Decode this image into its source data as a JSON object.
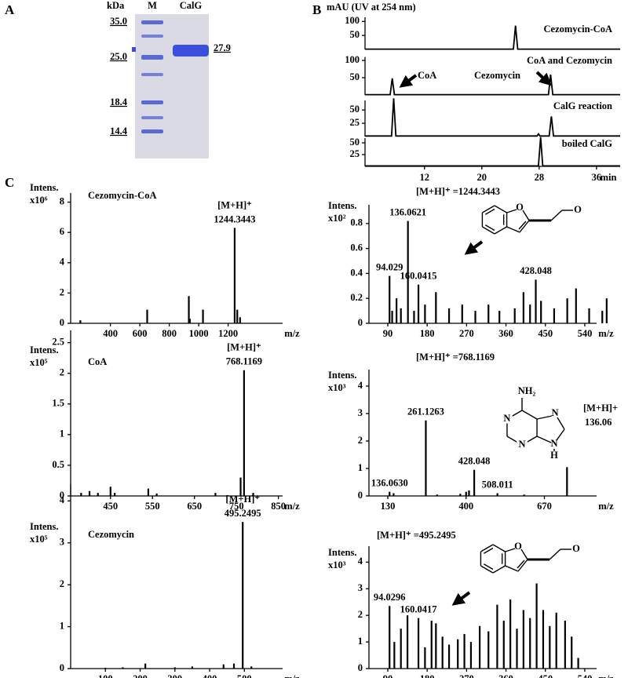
{
  "panel_labels": [
    "A",
    "B",
    "C"
  ],
  "gel": {
    "unit": "kDa",
    "lanes": [
      "M",
      "CalG"
    ],
    "marker_sizes": [
      "35.0",
      "25.0",
      "18.4",
      "14.4"
    ],
    "band_size": "27.9"
  },
  "chart_data": [
    {
      "type": "line",
      "title": "mAU (UV at 254 nm)",
      "x_label": "min",
      "xlim": [
        3.7,
        39.3
      ],
      "xticks": [
        12,
        20,
        28,
        36
      ],
      "series": [
        {
          "name": "Cezomycin-CoA",
          "color": "#000000",
          "ylim": [
            0,
            115
          ],
          "yticks": [
            50,
            100
          ],
          "annotations": [],
          "x": [
            3.7,
            24.4,
            24.7,
            25.0,
            39.3
          ],
          "values": [
            1,
            1,
            85,
            1,
            1
          ]
        },
        {
          "name": "CoA and Cezomycin",
          "color": "#000000",
          "ylim": [
            0,
            110
          ],
          "yticks": [
            50,
            100
          ],
          "annotations": [
            "CoA",
            "Cezomycin"
          ],
          "x": [
            3.7,
            7.2,
            7.5,
            7.8,
            29.3,
            29.6,
            29.9,
            39.3
          ],
          "values": [
            1,
            1,
            48,
            1,
            1,
            59,
            1,
            1
          ]
        },
        {
          "name": "CalG reaction",
          "color": "#000000",
          "ylim": [
            0,
            68
          ],
          "yticks": [
            25,
            50
          ],
          "annotations": [],
          "x": [
            3.7,
            7.4,
            7.7,
            8.0,
            27.7,
            27.9,
            28.1,
            29.4,
            29.7,
            30.0,
            39.3
          ],
          "values": [
            1,
            1,
            72,
            1,
            1,
            5,
            1,
            1,
            38,
            1,
            1
          ]
        },
        {
          "name": "boiled CalG",
          "color": "#000000",
          "ylim": [
            0,
            60
          ],
          "yticks": [
            25,
            50
          ],
          "annotations": [],
          "x": [
            3.7,
            27.9,
            28.2,
            28.5,
            39.3
          ],
          "values": [
            1,
            1,
            62,
            1,
            1
          ]
        }
      ]
    },
    {
      "type": "stem",
      "title": "Cezomycin-CoA",
      "y_label": "Intens.",
      "y_scale": "x10⁶",
      "x_label": "m/z",
      "annotation": "[M+H]⁺",
      "xlim": [
        130,
        1570
      ],
      "xticks": [
        400,
        600,
        800,
        1000,
        1200
      ],
      "ylim": [
        0,
        8.6
      ],
      "yticks": [
        0,
        2,
        4,
        6,
        8
      ],
      "x": [
        196,
        650,
        933,
        940,
        1029,
        1244.3443,
        1262,
        1281
      ],
      "values": [
        0.2,
        0.9,
        1.8,
        0.3,
        0.9,
        6.3,
        0.9,
        0.4
      ],
      "peak_labels": [
        null,
        null,
        null,
        null,
        null,
        "1244.3443",
        null,
        null
      ]
    },
    {
      "type": "stem",
      "title": "CoA",
      "y_label": "Intens.",
      "y_scale": "x10⁵",
      "x_label": "m/z",
      "annotation": "[M+H]⁺",
      "xlim": [
        355,
        860
      ],
      "xticks": [
        450,
        550,
        650,
        750,
        850
      ],
      "ylim": [
        0,
        2.7
      ],
      "yticks": [
        0,
        0.5,
        1,
        1.5,
        2,
        2.5
      ],
      "x": [
        380,
        400,
        420,
        450,
        460,
        540,
        560,
        700,
        760,
        768.1169,
        790
      ],
      "values": [
        0.05,
        0.08,
        0.05,
        0.15,
        0.05,
        0.12,
        0.04,
        0.05,
        0.3,
        2.05,
        0.05
      ],
      "peak_labels": [
        null,
        null,
        null,
        null,
        null,
        null,
        null,
        null,
        null,
        "768.1169",
        null
      ]
    },
    {
      "type": "stem",
      "title": "Cezomycin",
      "y_label": "Intens.",
      "y_scale": "x10⁵",
      "x_label": "m/z",
      "annotation": "[M+H]⁺",
      "xlim": [
        0,
        610
      ],
      "xticks": [
        100,
        200,
        300,
        400,
        500
      ],
      "ylim": [
        0,
        4.4
      ],
      "yticks": [
        0,
        1,
        2,
        3,
        4
      ],
      "x": [
        100,
        150,
        215,
        300,
        350,
        440,
        470,
        495.2495,
        520
      ],
      "values": [
        0.02,
        0.03,
        0.12,
        0.03,
        0.05,
        0.1,
        0.12,
        3.5,
        0.05
      ],
      "peak_labels": [
        null,
        null,
        null,
        null,
        null,
        null,
        null,
        "495.2495",
        null
      ]
    },
    {
      "type": "stem",
      "title": "[M+H]⁺ =1244.3443",
      "y_label": "Intens.",
      "y_scale": "x10²",
      "x_label": "m/z",
      "structure_labels": [
        "O",
        "O"
      ],
      "xlim": [
        47,
        567
      ],
      "xticks": [
        90,
        180,
        270,
        360,
        450,
        540
      ],
      "ylim": [
        0,
        0.95
      ],
      "yticks": [
        0,
        0.2,
        0.4,
        0.6,
        0.8
      ],
      "x": [
        94.029,
        100,
        110,
        120,
        136.0621,
        150,
        160.0415,
        175,
        200,
        230,
        260,
        290,
        320,
        345,
        380,
        400,
        415,
        428.048,
        440,
        470,
        500,
        520,
        550,
        580,
        590
      ],
      "values": [
        0.38,
        0.1,
        0.2,
        0.12,
        0.82,
        0.1,
        0.31,
        0.15,
        0.25,
        0.12,
        0.15,
        0.1,
        0.15,
        0.1,
        0.12,
        0.25,
        0.15,
        0.35,
        0.18,
        0.12,
        0.2,
        0.28,
        0.12,
        0.1,
        0.2
      ],
      "peak_labels": [
        "94.029",
        null,
        null,
        null,
        "136.0621",
        null,
        "160.0415",
        null,
        null,
        null,
        null,
        null,
        null,
        null,
        null,
        null,
        null,
        "428.048",
        null,
        null,
        null,
        null,
        null,
        null,
        null
      ]
    },
    {
      "type": "stem",
      "title": "[M+H]⁺ =768.1169",
      "y_label": "Intens.",
      "y_scale": "x10³",
      "x_label": "m/z",
      "structure_labels": [
        "NH₂",
        "N",
        "N",
        "N",
        "N",
        "H"
      ],
      "structure_note": [
        "[M+H]+",
        "136.06"
      ],
      "xlim": [
        65,
        850
      ],
      "xticks": [
        130,
        400,
        670
      ],
      "ylim": [
        0,
        4.6
      ],
      "yticks": [
        0,
        1,
        2,
        3,
        4
      ],
      "x": [
        136.063,
        150,
        261.1263,
        300,
        380,
        400,
        410,
        428.048,
        508.011,
        600,
        748
      ],
      "values": [
        0.15,
        0.1,
        2.75,
        0.05,
        0.08,
        0.15,
        0.2,
        0.95,
        0.1,
        0.05,
        1.05
      ],
      "peak_labels": [
        "136.0630",
        null,
        "261.1263",
        null,
        null,
        null,
        null,
        "428.048",
        "508.011",
        null,
        null
      ]
    },
    {
      "type": "stem",
      "title": "[M+H]⁺ =495.2495",
      "y_label": "Intens.",
      "y_scale": "x10³",
      "x_label": "m/z",
      "structure_labels": [
        "O",
        "O"
      ],
      "xlim": [
        47,
        567
      ],
      "xticks": [
        90,
        180,
        270,
        360,
        450,
        540
      ],
      "ylim": [
        0,
        4.6
      ],
      "yticks": [
        0,
        1,
        2,
        3,
        4
      ],
      "x": [
        94.0296,
        105,
        120,
        135,
        160.0417,
        175,
        190,
        200,
        215,
        230,
        250,
        265,
        280,
        300,
        320,
        340,
        355,
        370,
        385,
        400,
        415,
        430,
        445,
        460,
        475,
        495,
        510,
        525
      ],
      "values": [
        2.35,
        1.0,
        1.5,
        2.0,
        1.9,
        0.8,
        1.8,
        1.7,
        1.2,
        0.9,
        1.1,
        1.3,
        1.0,
        1.6,
        1.4,
        2.4,
        1.8,
        2.6,
        1.5,
        2.2,
        1.9,
        3.2,
        2.2,
        1.6,
        2.1,
        1.8,
        1.2,
        0.4
      ],
      "peak_labels": [
        "94.0296",
        null,
        null,
        null,
        "160.0417",
        null,
        null,
        null,
        null,
        null,
        null,
        null,
        null,
        null,
        null,
        null,
        null,
        null,
        null,
        null,
        null,
        null,
        null,
        null,
        null,
        null,
        null,
        null
      ]
    }
  ]
}
